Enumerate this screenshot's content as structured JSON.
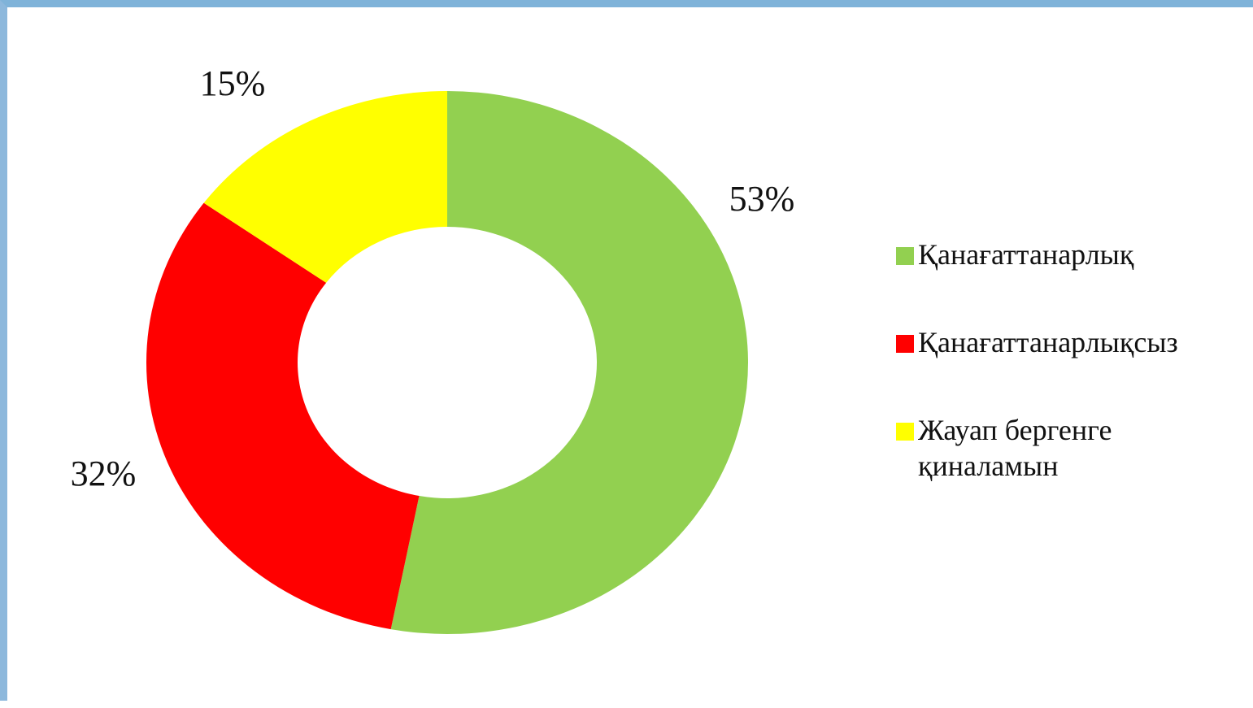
{
  "chart_data": {
    "type": "donut",
    "categories": [
      "Қанағаттанарлық",
      "Қанағаттанарлықсыз",
      "Жауап бергенге қиналамын"
    ],
    "values": [
      53,
      32,
      15
    ],
    "value_labels": [
      "53%",
      "32%",
      "15%"
    ],
    "colors": [
      "#92d050",
      "#ff0000",
      "#ffff00"
    ],
    "legend": "right"
  }
}
